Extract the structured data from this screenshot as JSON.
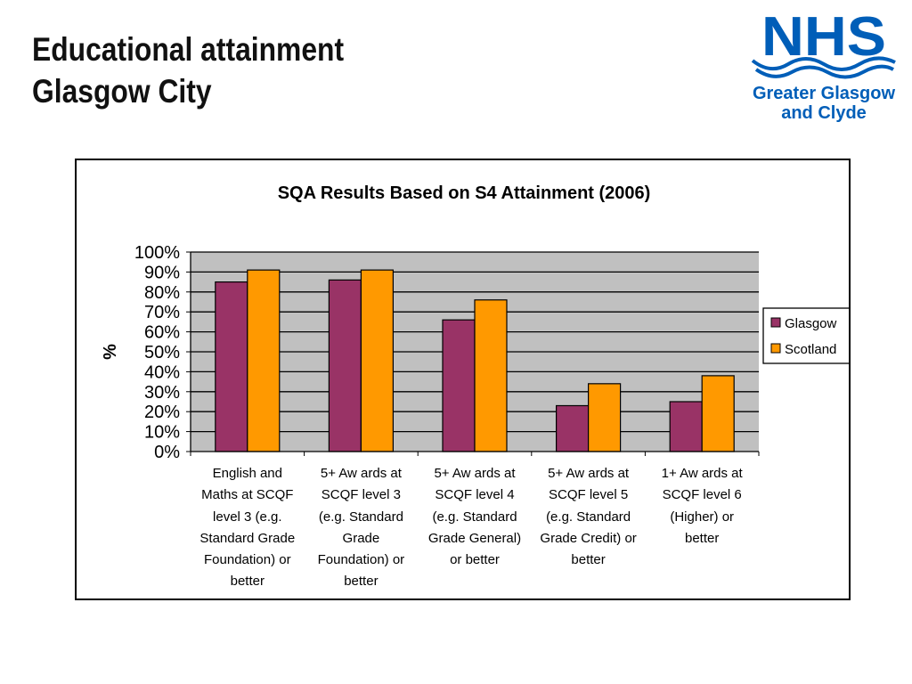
{
  "slide": {
    "title_line1": "Educational attainment",
    "title_line2": "Glasgow City"
  },
  "logo": {
    "mark": "NHS",
    "line1": "Greater Glasgow",
    "line2": "and Clyde",
    "color": "#005eb8"
  },
  "colors": {
    "glasgow": "#993366",
    "scotland": "#ff9900",
    "plot_area": "#c0c0c0"
  },
  "chart_data": {
    "type": "bar",
    "title": "SQA Results Based on S4 Attainment (2006)",
    "ylabel": "%",
    "xlabel": "",
    "ylim": [
      0,
      100
    ],
    "yticks": [
      "0%",
      "10%",
      "20%",
      "30%",
      "40%",
      "50%",
      "60%",
      "70%",
      "80%",
      "90%",
      "100%"
    ],
    "grid": true,
    "legend_position": "right",
    "categories": [
      [
        "English and",
        "Maths at SCQF",
        "level 3 (e.g.",
        "Standard Grade",
        "Foundation) or",
        "better"
      ],
      [
        "5+ Aw ards at",
        "SCQF level 3",
        "(e.g. Standard",
        "Grade",
        "Foundation) or",
        "better"
      ],
      [
        "5+ Aw ards at",
        "SCQF level 4",
        "(e.g. Standard",
        "Grade General)",
        "or better"
      ],
      [
        "5+ Aw ards at",
        "SCQF level 5",
        "(e.g. Standard",
        "Grade Credit) or",
        "better"
      ],
      [
        "1+ Aw ards at",
        "SCQF level 6",
        "(Higher) or",
        "better"
      ]
    ],
    "series": [
      {
        "name": "Glasgow",
        "values": [
          85,
          86,
          66,
          23,
          25
        ]
      },
      {
        "name": "Scotland",
        "values": [
          91,
          91,
          76,
          34,
          38
        ]
      }
    ]
  }
}
